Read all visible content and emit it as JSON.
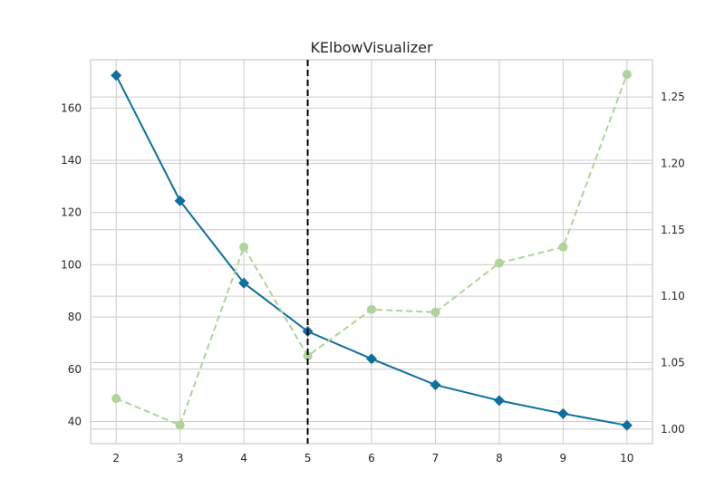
{
  "chart_data": {
    "type": "line",
    "title": "KElbowVisualizer",
    "xlabel": "",
    "ylabel": "",
    "y2label": "",
    "x": [
      2,
      3,
      4,
      5,
      6,
      7,
      8,
      9,
      10
    ],
    "xlim": [
      1.6,
      10.4
    ],
    "ylim": [
      31.5,
      178.5
    ],
    "y2lim": [
      0.989,
      1.278
    ],
    "x_ticks": [
      "2",
      "3",
      "4",
      "5",
      "6",
      "7",
      "8",
      "9",
      "10"
    ],
    "y_ticks": [
      {
        "value": 40,
        "label": "40"
      },
      {
        "value": 60,
        "label": "60"
      },
      {
        "value": 80,
        "label": "80"
      },
      {
        "value": 100,
        "label": "100"
      },
      {
        "value": 120,
        "label": "120"
      },
      {
        "value": 140,
        "label": "140"
      },
      {
        "value": 160,
        "label": "160"
      }
    ],
    "y2_ticks": [
      {
        "value": 1.0,
        "label": "1.00"
      },
      {
        "value": 1.05,
        "label": "1.05"
      },
      {
        "value": 1.1,
        "label": "1.10"
      },
      {
        "value": 1.15,
        "label": "1.15"
      },
      {
        "value": 1.2,
        "label": "1.20"
      },
      {
        "value": 1.25,
        "label": "1.25"
      }
    ],
    "grid": true,
    "elbow_k": 5,
    "series": [
      {
        "axis": "left",
        "color": "#0e6fa0",
        "marker": "diamond",
        "style": "solid",
        "values": [
          172.5,
          124.5,
          93,
          74.5,
          64,
          54,
          48,
          43,
          38.5
        ]
      },
      {
        "axis": "right",
        "color": "#aed39b",
        "marker": "circle",
        "style": "dashed",
        "values": [
          1.023,
          1.003,
          1.137,
          1.055,
          1.09,
          1.088,
          1.125,
          1.137,
          1.267
        ]
      }
    ],
    "colors": {
      "grid": "#cccccc",
      "spine": "#cccccc",
      "elbow_line": "#000000",
      "background": "#ffffff"
    }
  }
}
